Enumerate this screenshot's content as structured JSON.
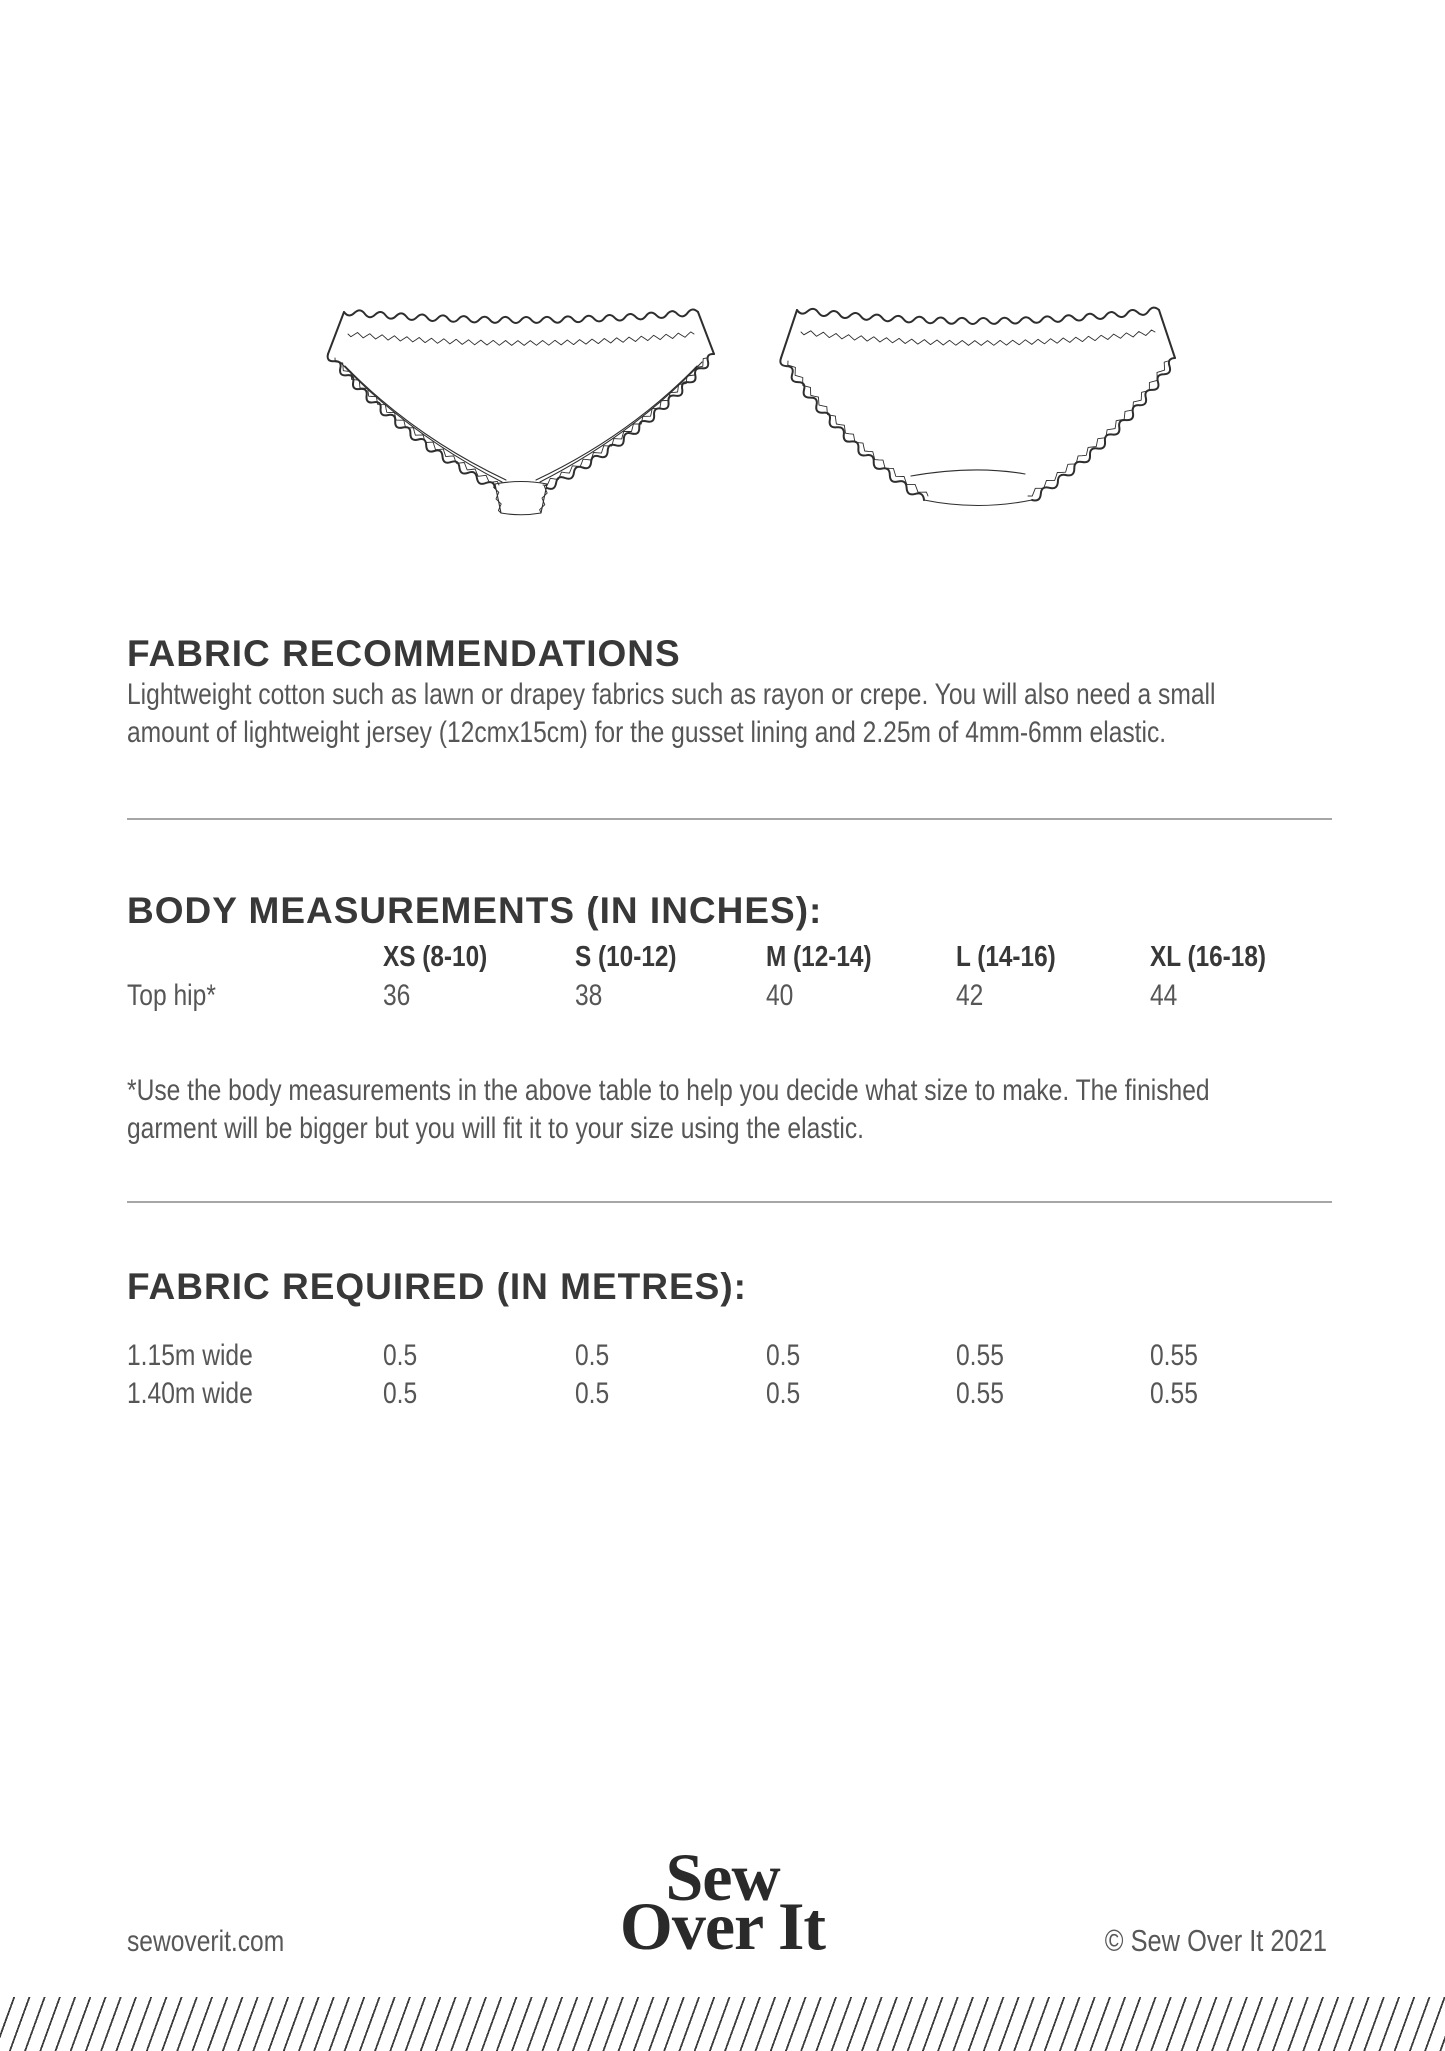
{
  "illustrations": {
    "front": "knickers-front-line-drawing",
    "back": "knickers-back-line-drawing"
  },
  "fabric_recommendations": {
    "heading": "FABRIC RECOMMENDATIONS",
    "body_lines": [
      "Lightweight cotton such as lawn or drapey fabrics such as rayon or crepe. You will also need a small",
      "amount of lightweight jersey (12cmx15cm) for the gusset lining and 2.25m of 4mm-6mm elastic."
    ]
  },
  "body_measurements": {
    "heading": "BODY MEASUREMENTS (IN INCHES):",
    "size_columns": [
      "XS (8-10)",
      "S (10-12)",
      "M (12-14)",
      "L (14-16)",
      "XL (16-18)"
    ],
    "rows": [
      {
        "label": "Top hip*",
        "values": [
          "36",
          "38",
          "40",
          "42",
          "44"
        ]
      }
    ],
    "note_lines": [
      "*Use the body measurements in the above table to help you decide what size to make. The finished",
      "garment will be bigger but you will fit it to your size using the elastic."
    ]
  },
  "fabric_required": {
    "heading": "FABRIC REQUIRED (IN METRES):",
    "rows": [
      {
        "label": "1.15m wide",
        "values": [
          "0.5",
          "0.5",
          "0.5",
          "0.55",
          "0.55"
        ]
      },
      {
        "label": "1.40m wide",
        "values": [
          "0.5",
          "0.5",
          "0.5",
          "0.55",
          "0.55"
        ]
      }
    ]
  },
  "footer": {
    "website": "sewoverit.com",
    "logo": [
      "Sew",
      "Over It"
    ],
    "copyright": "© Sew Over It 2021"
  },
  "colors": {
    "heading_text": "#383838",
    "body_text": "#565656",
    "divider": "#a6a6a6",
    "line_art": "#2e2e2e",
    "stripe": "#3d3d3d",
    "background": "#ffffff"
  }
}
